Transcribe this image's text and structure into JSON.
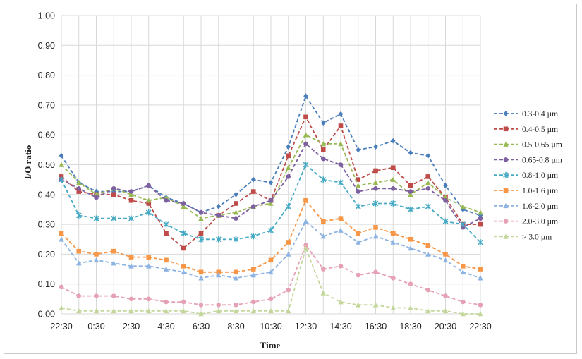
{
  "chart_data": {
    "type": "line",
    "title": "",
    "xlabel": "Time",
    "ylabel": "I/O ratio",
    "ylim": [
      0,
      1
    ],
    "y_ticks": [
      "0.00",
      "0.10",
      "0.20",
      "0.30",
      "0.40",
      "0.50",
      "0.60",
      "0.70",
      "0.80",
      "0.90",
      "1.00"
    ],
    "x_tick_labels": [
      "22:30",
      "0:30",
      "2:30",
      "4:30",
      "6:30",
      "8:30",
      "10:30",
      "12:30",
      "14:30",
      "16:30",
      "18:30",
      "20:30",
      "22:30"
    ],
    "x": [
      "22:30",
      "23:30",
      "0:30",
      "1:30",
      "2:30",
      "3:30",
      "4:30",
      "5:30",
      "6:30",
      "7:30",
      "8:30",
      "9:30",
      "10:30",
      "11:30",
      "12:30",
      "13:30",
      "14:30",
      "15:30",
      "16:30",
      "17:30",
      "18:30",
      "19:30",
      "20:30",
      "21:30",
      "22:30"
    ],
    "grid": true,
    "legend_position": "right",
    "series": [
      {
        "name": "0.3-0.4 µm",
        "color": "#4a7ebb",
        "marker": "diamond",
        "values": [
          0.53,
          0.44,
          0.41,
          0.41,
          0.41,
          0.43,
          0.39,
          0.37,
          0.34,
          0.36,
          0.4,
          0.45,
          0.44,
          0.56,
          0.73,
          0.64,
          0.67,
          0.55,
          0.56,
          0.58,
          0.54,
          0.53,
          0.43,
          0.35,
          0.33
        ]
      },
      {
        "name": "0.4-0.5 µm",
        "color": "#be4b48",
        "marker": "square",
        "values": [
          0.46,
          0.41,
          0.4,
          0.4,
          0.38,
          0.37,
          0.27,
          0.22,
          0.27,
          0.33,
          0.37,
          0.41,
          0.38,
          0.53,
          0.66,
          0.55,
          0.63,
          0.45,
          0.48,
          0.49,
          0.43,
          0.46,
          0.39,
          0.3,
          0.3
        ]
      },
      {
        "name": "0.5-0.65 µm",
        "color": "#98b954",
        "marker": "triangle",
        "values": [
          0.5,
          0.44,
          0.4,
          0.42,
          0.4,
          0.38,
          0.39,
          0.36,
          0.32,
          0.33,
          0.34,
          0.36,
          0.37,
          0.49,
          0.6,
          0.57,
          0.57,
          0.43,
          0.44,
          0.45,
          0.4,
          0.44,
          0.39,
          0.36,
          0.34
        ]
      },
      {
        "name": "0.65-0.8 µm",
        "color": "#7d60a0",
        "marker": "circle",
        "values": [
          0.45,
          0.42,
          0.39,
          0.42,
          0.41,
          0.43,
          0.38,
          0.37,
          0.34,
          0.33,
          0.32,
          0.36,
          0.38,
          0.46,
          0.57,
          0.52,
          0.5,
          0.41,
          0.42,
          0.42,
          0.41,
          0.42,
          0.38,
          0.29,
          0.32
        ]
      },
      {
        "name": "0.8-1.0 µm",
        "color": "#46aac5",
        "marker": "star",
        "values": [
          0.45,
          0.33,
          0.32,
          0.32,
          0.32,
          0.34,
          0.3,
          0.27,
          0.25,
          0.25,
          0.25,
          0.26,
          0.28,
          0.36,
          0.5,
          0.45,
          0.44,
          0.36,
          0.37,
          0.37,
          0.35,
          0.36,
          0.31,
          0.3,
          0.24
        ]
      },
      {
        "name": "1.0-1.6 µm",
        "color": "#f79646",
        "marker": "square",
        "values": [
          0.27,
          0.21,
          0.2,
          0.21,
          0.19,
          0.19,
          0.18,
          0.16,
          0.14,
          0.14,
          0.14,
          0.15,
          0.18,
          0.24,
          0.38,
          0.31,
          0.32,
          0.27,
          0.29,
          0.27,
          0.25,
          0.23,
          0.2,
          0.16,
          0.15
        ]
      },
      {
        "name": "1.6-2.0 µm",
        "color": "#8db3e2",
        "marker": "triangle",
        "values": [
          0.25,
          0.17,
          0.18,
          0.17,
          0.16,
          0.16,
          0.15,
          0.14,
          0.12,
          0.13,
          0.12,
          0.13,
          0.14,
          0.2,
          0.31,
          0.26,
          0.28,
          0.24,
          0.26,
          0.24,
          0.22,
          0.2,
          0.18,
          0.14,
          0.12
        ]
      },
      {
        "name": "2.0-3.0 µm",
        "color": "#e6a0b4",
        "marker": "circle",
        "values": [
          0.09,
          0.06,
          0.06,
          0.06,
          0.05,
          0.05,
          0.04,
          0.04,
          0.03,
          0.03,
          0.03,
          0.04,
          0.05,
          0.08,
          0.23,
          0.15,
          0.16,
          0.13,
          0.14,
          0.12,
          0.1,
          0.08,
          0.06,
          0.04,
          0.03
        ]
      },
      {
        "name": "> 3.0 µm",
        "color": "#c4d79b",
        "marker": "triangle",
        "values": [
          0.02,
          0.01,
          0.01,
          0.01,
          0.01,
          0.01,
          0.01,
          0.01,
          0.0,
          0.01,
          0.01,
          0.01,
          0.01,
          0.01,
          0.22,
          0.07,
          0.04,
          0.03,
          0.03,
          0.02,
          0.02,
          0.01,
          0.01,
          0.0,
          0.0
        ]
      }
    ]
  }
}
